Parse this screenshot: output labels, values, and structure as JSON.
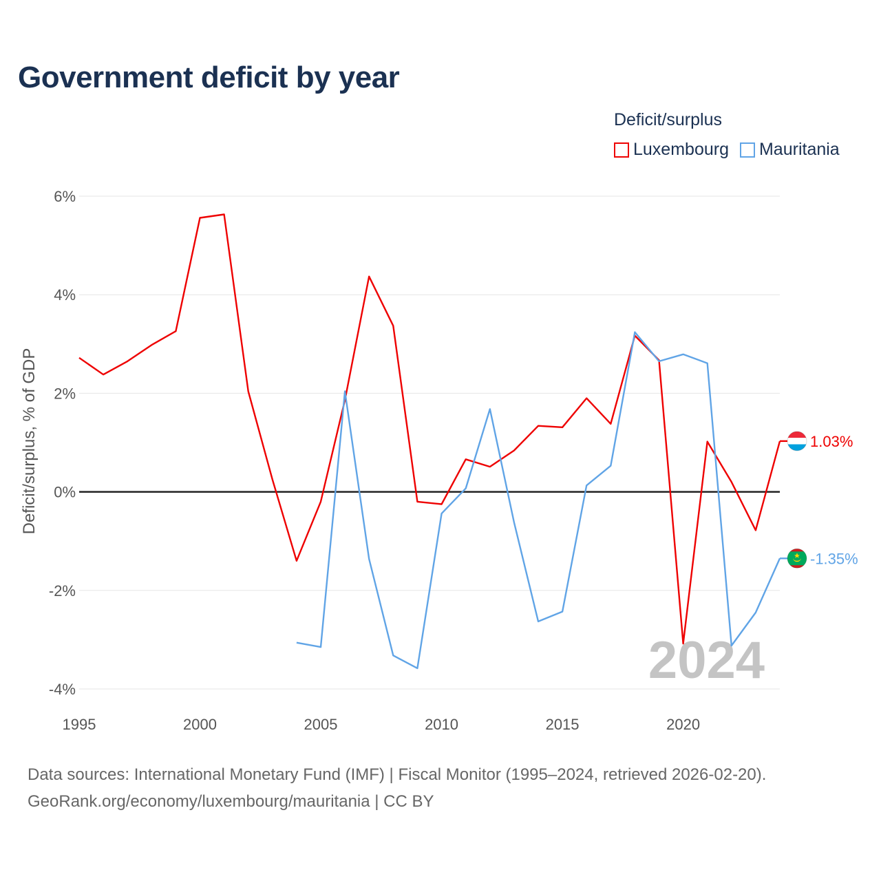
{
  "chart_data": {
    "type": "line",
    "title": "Government deficit by year",
    "legend_title": "Deficit/surplus",
    "legend_position": "top-right",
    "ylabel": "Deficit/surplus, % of GDP",
    "xlabel": "",
    "xlim": [
      1995,
      2024
    ],
    "ylim": [
      -4,
      6
    ],
    "x_ticks": [
      1995,
      2000,
      2005,
      2010,
      2015,
      2020
    ],
    "x_tick_labels": [
      "1995",
      "2000",
      "2005",
      "2010",
      "2015",
      "2020"
    ],
    "y_ticks": [
      -4,
      -2,
      0,
      2,
      4,
      6
    ],
    "y_tick_labels": [
      "-4%",
      "-2%",
      "0%",
      "2%",
      "4%",
      "6%"
    ],
    "grid": true,
    "current_year": "2024",
    "series": [
      {
        "name": "Luxembourg",
        "color": "#ee0000",
        "end_label": "1.03%",
        "flag": "luxembourg-flag",
        "points": [
          [
            1995,
            2.72
          ],
          [
            1996,
            2.38
          ],
          [
            1997,
            2.65
          ],
          [
            1998,
            2.98
          ],
          [
            1999,
            3.26
          ],
          [
            2000,
            5.56
          ],
          [
            2001,
            5.63
          ],
          [
            2002,
            2.04
          ],
          [
            2003,
            0.25
          ],
          [
            2004,
            -1.4
          ],
          [
            2005,
            -0.2
          ],
          [
            2006,
            1.86
          ],
          [
            2007,
            4.37
          ],
          [
            2008,
            3.37
          ],
          [
            2009,
            -0.2
          ],
          [
            2010,
            -0.25
          ],
          [
            2011,
            0.66
          ],
          [
            2012,
            0.51
          ],
          [
            2013,
            0.84
          ],
          [
            2014,
            1.34
          ],
          [
            2015,
            1.31
          ],
          [
            2016,
            1.9
          ],
          [
            2017,
            1.38
          ],
          [
            2018,
            3.17
          ],
          [
            2019,
            2.67
          ],
          [
            2020,
            -3.08
          ],
          [
            2021,
            1.02
          ],
          [
            2022,
            0.2
          ],
          [
            2023,
            -0.78
          ],
          [
            2024,
            1.03
          ]
        ]
      },
      {
        "name": "Mauritania",
        "color": "#60a4e6",
        "end_label": "-1.35%",
        "flag": "mauritania-flag",
        "points": [
          [
            2004,
            -3.06
          ],
          [
            2005,
            -3.15
          ],
          [
            2006,
            2.04
          ],
          [
            2007,
            -1.36
          ],
          [
            2008,
            -3.32
          ],
          [
            2009,
            -3.58
          ],
          [
            2010,
            -0.44
          ],
          [
            2011,
            0.07
          ],
          [
            2012,
            1.68
          ],
          [
            2013,
            -0.62
          ],
          [
            2014,
            -2.63
          ],
          [
            2015,
            -2.43
          ],
          [
            2016,
            0.13
          ],
          [
            2017,
            0.53
          ],
          [
            2018,
            3.24
          ],
          [
            2019,
            2.65
          ],
          [
            2020,
            2.79
          ],
          [
            2021,
            2.61
          ],
          [
            2022,
            -3.12
          ],
          [
            2023,
            -2.45
          ],
          [
            2024,
            -1.35
          ]
        ]
      }
    ]
  },
  "footer": {
    "sources": "Data sources: International Monetary Fund (IMF) | Fiscal Monitor (1995–2024, retrieved 2026-02-20).",
    "credit": "GeoRank.org/economy/luxembourg/mauritania | CC BY"
  }
}
